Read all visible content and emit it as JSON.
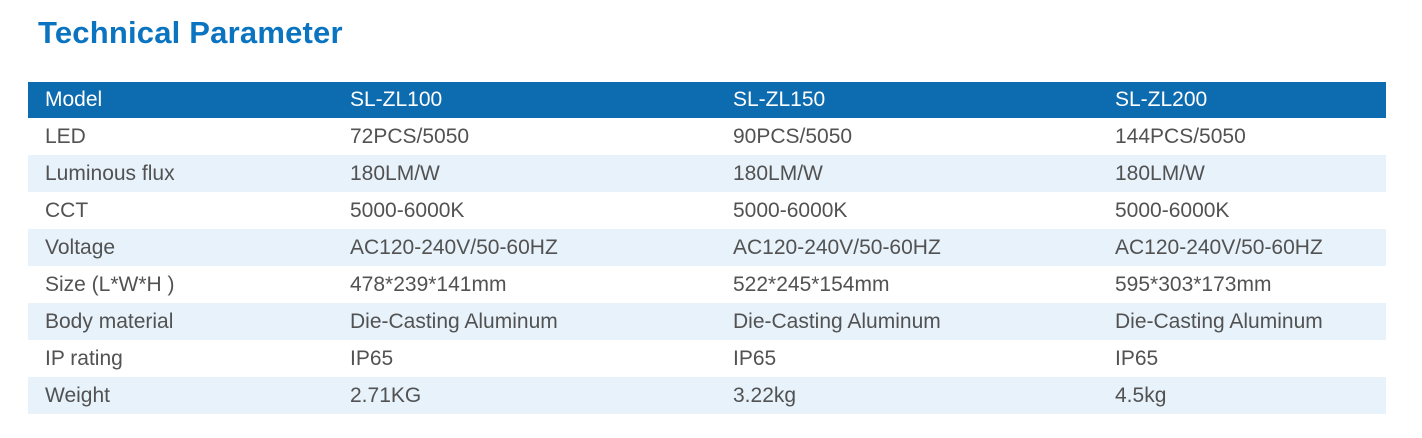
{
  "page_title": "Technical Parameter",
  "colors": {
    "title_text": "#0a74c1",
    "header_bg": "#0d6baf",
    "header_text": "#ffffff",
    "stripe_bg": "#e7f2fb",
    "body_text": "#525252"
  },
  "table": {
    "columns": [
      "Model",
      "SL-ZL100",
      "SL-ZL150",
      "SL-ZL200"
    ],
    "rows": [
      {
        "label": "LED",
        "values": [
          "72PCS/5050",
          "90PCS/5050",
          "144PCS/5050"
        ]
      },
      {
        "label": "Luminous flux",
        "values": [
          "180LM/W",
          "180LM/W",
          "180LM/W"
        ]
      },
      {
        "label": "CCT",
        "values": [
          "5000-6000K",
          "5000-6000K",
          "5000-6000K"
        ]
      },
      {
        "label": "Voltage",
        "values": [
          "AC120-240V/50-60HZ",
          "AC120-240V/50-60HZ",
          "AC120-240V/50-60HZ"
        ]
      },
      {
        "label": "Size (L*W*H )",
        "values": [
          "478*239*141mm",
          "522*245*154mm",
          "595*303*173mm"
        ]
      },
      {
        "label": "Body material",
        "values": [
          "Die-Casting Aluminum",
          "Die-Casting Aluminum",
          "Die-Casting Aluminum"
        ]
      },
      {
        "label": "IP rating",
        "values": [
          "IP65",
          "IP65",
          "IP65"
        ]
      },
      {
        "label": "Weight",
        "values": [
          "2.71KG",
          "3.22kg",
          "4.5kg"
        ]
      }
    ]
  }
}
